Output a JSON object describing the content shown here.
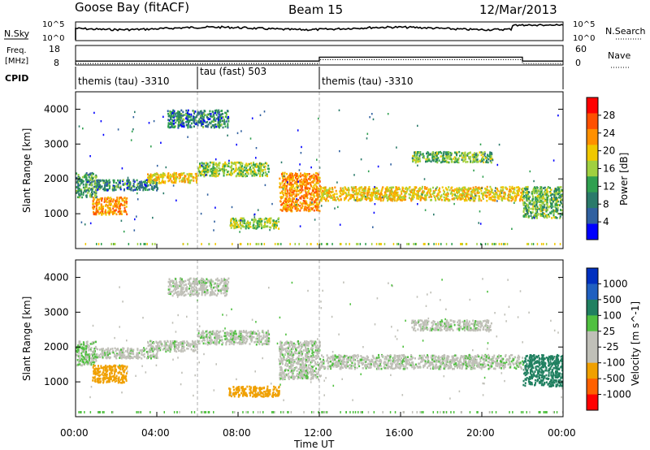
{
  "header": {
    "station": "Goose Bay (fitACF)",
    "beam": "Beam 15",
    "date": "12/Mar/2013"
  },
  "nsky_panel": {
    "left_label": "N.Sky",
    "right_label": "N.Search",
    "ticks_left": [
      "10^5",
      "10^0"
    ],
    "ticks_right": [
      "10^5",
      "10^0"
    ]
  },
  "freq_panel": {
    "left_label_line1": "Freq.",
    "left_label_line2": "[MHz]",
    "right_label": "Nave",
    "ticks_left": [
      "18",
      "8"
    ],
    "ticks_right": [
      "60",
      "0"
    ]
  },
  "cpid_panel": {
    "label": "CPID",
    "segments": [
      {
        "name": "themis (tau) -3310",
        "start_hour": 0,
        "end_hour": 6
      },
      {
        "name": "tau (fast) 503",
        "start_hour": 6,
        "end_hour": 12
      },
      {
        "name": "themis (tau) -3310",
        "start_hour": 12,
        "end_hour": 24
      }
    ]
  },
  "power_panel": {
    "ylabel": "Slant Range [km]",
    "yticks": [
      "4000",
      "3000",
      "2000",
      "1000"
    ],
    "colorbar_label": "Power [dB]",
    "colorbar_ticks": [
      "28",
      "24",
      "20",
      "16",
      "12",
      "8",
      "4"
    ],
    "colorbar_colors": [
      "#ff0000",
      "#ff5000",
      "#ff9000",
      "#f0c800",
      "#a0d040",
      "#30a050",
      "#2a7a6a",
      "#3060a0",
      "#0000ff"
    ]
  },
  "velocity_panel": {
    "ylabel": "Slant Range [km]",
    "yticks": [
      "4000",
      "3000",
      "2000",
      "1000"
    ],
    "colorbar_label": "Velocity [m s^-1]",
    "colorbar_ticks": [
      "1000",
      "500",
      "100",
      "25",
      "-25",
      "-100",
      "-500",
      "-1000"
    ],
    "colorbar_colors": [
      "#0030c0",
      "#2060c0",
      "#208060",
      "#50c040",
      "#c0c0b8",
      "#c0c0b8",
      "#f0a000",
      "#ff6000",
      "#ff0000"
    ]
  },
  "xaxis": {
    "label": "Time UT",
    "ticks": [
      "00:00",
      "04:00",
      "08:00",
      "12:00",
      "16:00",
      "20:00",
      "00:00"
    ]
  },
  "chart_data": {
    "type": "heatmap",
    "title": "Goose Bay (fitACF) Beam 15 12/Mar/2013",
    "xlabel": "Time UT",
    "ylabel": "Slant Range [km]",
    "x_range_hours": [
      0,
      24
    ],
    "ylim": [
      0,
      4500
    ],
    "frequency_MHz": [
      {
        "start_hour": 0,
        "end_hour": 6,
        "value": 10
      },
      {
        "start_hour": 6,
        "end_hour": 12,
        "value": 10
      },
      {
        "start_hour": 12,
        "end_hour": 22,
        "value": 12
      },
      {
        "start_hour": 22,
        "end_hour": 24,
        "value": 10
      }
    ],
    "scatter_bands": [
      {
        "name": "band-1",
        "start_hour": 0.0,
        "end_hour": 1.0,
        "range_low": 1500,
        "range_high": 2200,
        "power_dB": 10,
        "velocity": 25
      },
      {
        "name": "band-2",
        "start_hour": 0.8,
        "end_hour": 2.5,
        "range_low": 1000,
        "range_high": 1500,
        "power_dB": 22,
        "velocity": -300
      },
      {
        "name": "band-3",
        "start_hour": 1.0,
        "end_hour": 4.0,
        "range_low": 1700,
        "range_high": 2000,
        "power_dB": 8,
        "velocity": 0
      },
      {
        "name": "band-4",
        "start_hour": 3.5,
        "end_hour": 6.0,
        "range_low": 1900,
        "range_high": 2200,
        "power_dB": 18,
        "velocity": 0
      },
      {
        "name": "band-5",
        "start_hour": 4.5,
        "end_hour": 7.5,
        "range_low": 3500,
        "range_high": 4000,
        "power_dB": 8,
        "velocity": 0
      },
      {
        "name": "band-6",
        "start_hour": 6.0,
        "end_hour": 9.5,
        "range_low": 2100,
        "range_high": 2500,
        "power_dB": 14,
        "velocity": 0
      },
      {
        "name": "band-7",
        "start_hour": 7.5,
        "end_hour": 10.0,
        "range_low": 600,
        "range_high": 900,
        "power_dB": 14,
        "velocity": -200
      },
      {
        "name": "band-8",
        "start_hour": 10.0,
        "end_hour": 12.0,
        "range_low": 1100,
        "range_high": 2200,
        "power_dB": 22,
        "velocity": 0
      },
      {
        "name": "band-9",
        "start_hour": 12.0,
        "end_hour": 22.0,
        "range_low": 1400,
        "range_high": 1800,
        "power_dB": 18,
        "velocity": 0
      },
      {
        "name": "band-10",
        "start_hour": 16.5,
        "end_hour": 20.5,
        "range_low": 2500,
        "range_high": 2800,
        "power_dB": 12,
        "velocity": 0
      },
      {
        "name": "band-11",
        "start_hour": 22.0,
        "end_hour": 24.0,
        "range_low": 900,
        "range_high": 1800,
        "power_dB": 12,
        "velocity": 200
      }
    ]
  }
}
